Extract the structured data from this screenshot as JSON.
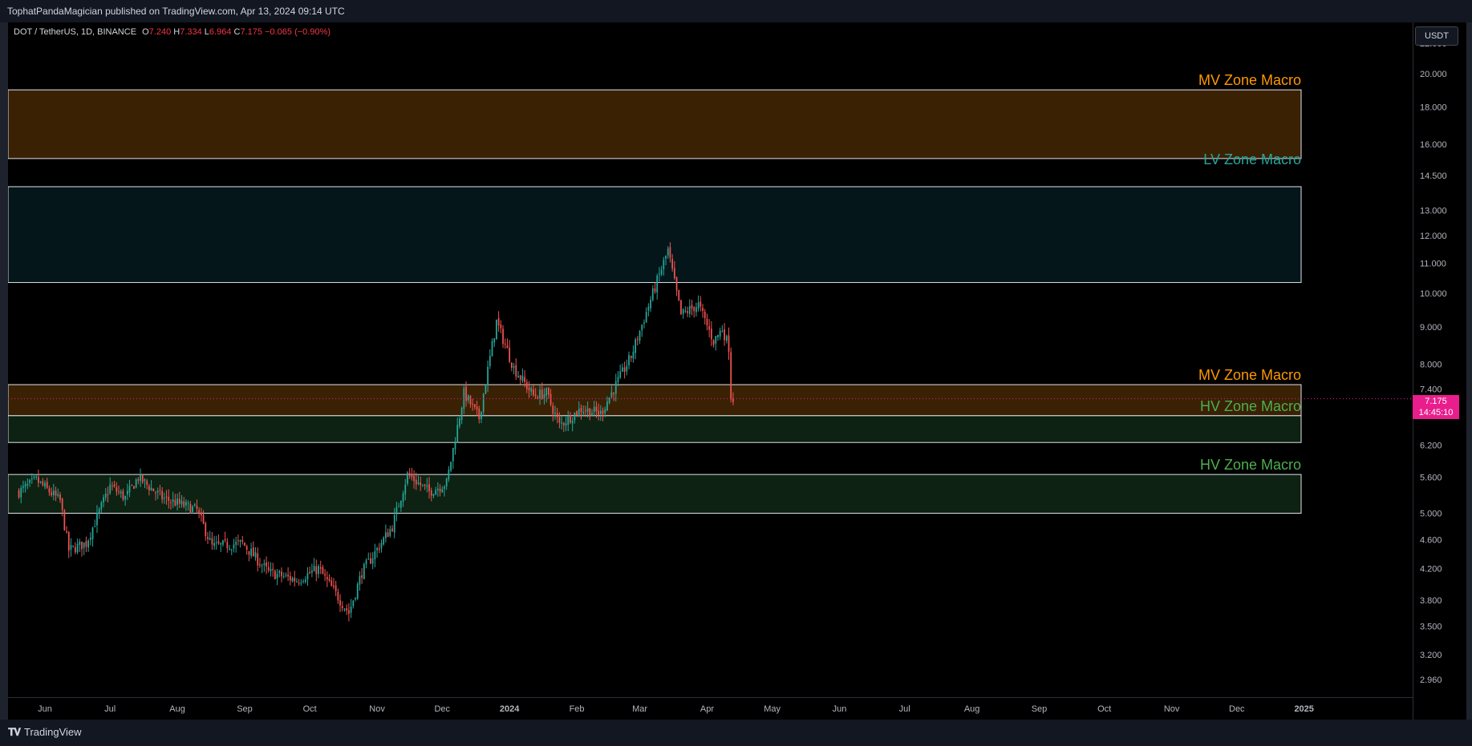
{
  "header": {
    "published_by": "TophatPandaMagician published on TradingView.com, Apr 13, 2024 09:14 UTC"
  },
  "legend": {
    "symbol": "DOT / TetherUS, 1D, BINANCE",
    "o_label": "O",
    "o_value": "7.240",
    "h_label": "H",
    "h_value": "7.334",
    "l_label": "L",
    "l_value": "6.964",
    "c_label": "C",
    "c_value": "7.175",
    "change": "−0.065 (−0.90%)"
  },
  "price_axis": {
    "currency": "USDT",
    "last_price": "7.175",
    "countdown": "14:45:10"
  },
  "footer": {
    "brand": "TradingView"
  },
  "colors": {
    "up": "#26a69a",
    "down": "#ef5350",
    "mv_zone_fill": "#3a2104",
    "lv_zone_fill": "#04161a",
    "hv_zone_fill": "#0d2212",
    "mv_label": "#ff9800",
    "lv_label": "#26a69a",
    "hv_label": "#4caf50",
    "price_line": "#e91e8c"
  },
  "chart_data": {
    "type": "candlestick",
    "title": "DOT / TetherUS, 1D, BINANCE",
    "y_scale": "log",
    "ylim": [
      2.8,
      23.5
    ],
    "y_ticks": [
      "22.000",
      "20.000",
      "18.000",
      "16.000",
      "14.500",
      "13.000",
      "12.000",
      "11.000",
      "10.000",
      "9.000",
      "8.000",
      "7.400",
      "6.800",
      "6.200",
      "5.600",
      "5.000",
      "4.600",
      "4.200",
      "3.800",
      "3.500",
      "3.200",
      "2.960"
    ],
    "x_ticks": [
      {
        "label": "Jun",
        "date": "2023-06-01"
      },
      {
        "label": "Jul",
        "date": "2023-07-01"
      },
      {
        "label": "Aug",
        "date": "2023-08-01"
      },
      {
        "label": "Sep",
        "date": "2023-09-01"
      },
      {
        "label": "Oct",
        "date": "2023-10-01"
      },
      {
        "label": "Nov",
        "date": "2023-11-01"
      },
      {
        "label": "Dec",
        "date": "2023-12-01"
      },
      {
        "label": "2024",
        "date": "2024-01-01"
      },
      {
        "label": "Feb",
        "date": "2024-02-01"
      },
      {
        "label": "Mar",
        "date": "2024-03-01"
      },
      {
        "label": "Apr",
        "date": "2024-04-01"
      },
      {
        "label": "May",
        "date": "2024-05-01"
      },
      {
        "label": "Jun",
        "date": "2024-06-01"
      },
      {
        "label": "Jul",
        "date": "2024-07-01"
      },
      {
        "label": "Aug",
        "date": "2024-08-01"
      },
      {
        "label": "Sep",
        "date": "2024-09-01"
      },
      {
        "label": "Oct",
        "date": "2024-10-01"
      },
      {
        "label": "Nov",
        "date": "2024-11-01"
      },
      {
        "label": "Dec",
        "date": "2024-12-01"
      },
      {
        "label": "2025",
        "date": "2025-01-01"
      }
    ],
    "zones": [
      {
        "label": "MV Zone Macro",
        "kind": "mv",
        "low": 15.3,
        "high": 19.0
      },
      {
        "label": "LV Zone Macro",
        "kind": "lv",
        "low": 10.35,
        "high": 14.0
      },
      {
        "label": "MV Zone Macro",
        "kind": "mv",
        "low": 6.8,
        "high": 7.5
      },
      {
        "label": "HV Zone Macro",
        "kind": "hv",
        "low": 6.25,
        "high": 6.8
      },
      {
        "label": "HV Zone Macro",
        "kind": "hv",
        "low": 5.0,
        "high": 5.65
      }
    ],
    "last_price": 7.175,
    "anchors": [
      {
        "date": "2023-05-20",
        "price": 5.35
      },
      {
        "date": "2023-05-28",
        "price": 5.55
      },
      {
        "date": "2023-06-08",
        "price": 5.2
      },
      {
        "date": "2023-06-12",
        "price": 4.45
      },
      {
        "date": "2023-06-20",
        "price": 4.55
      },
      {
        "date": "2023-07-01",
        "price": 5.45
      },
      {
        "date": "2023-07-08",
        "price": 5.25
      },
      {
        "date": "2023-07-14",
        "price": 5.6
      },
      {
        "date": "2023-07-25",
        "price": 5.25
      },
      {
        "date": "2023-08-10",
        "price": 5.05
      },
      {
        "date": "2023-08-17",
        "price": 4.5
      },
      {
        "date": "2023-08-31",
        "price": 4.55
      },
      {
        "date": "2023-09-12",
        "price": 4.15
      },
      {
        "date": "2023-09-25",
        "price": 4.05
      },
      {
        "date": "2023-10-05",
        "price": 4.2
      },
      {
        "date": "2023-10-19",
        "price": 3.65
      },
      {
        "date": "2023-10-25",
        "price": 4.15
      },
      {
        "date": "2023-11-08",
        "price": 4.8
      },
      {
        "date": "2023-11-15",
        "price": 5.65
      },
      {
        "date": "2023-11-25",
        "price": 5.35
      },
      {
        "date": "2023-12-03",
        "price": 5.5
      },
      {
        "date": "2023-12-11",
        "price": 7.3
      },
      {
        "date": "2023-12-18",
        "price": 6.75
      },
      {
        "date": "2023-12-26",
        "price": 9.15
      },
      {
        "date": "2024-01-03",
        "price": 7.9
      },
      {
        "date": "2024-01-12",
        "price": 7.25
      },
      {
        "date": "2024-01-18",
        "price": 7.3
      },
      {
        "date": "2024-01-24",
        "price": 6.6
      },
      {
        "date": "2024-02-03",
        "price": 6.95
      },
      {
        "date": "2024-02-12",
        "price": 6.85
      },
      {
        "date": "2024-02-26",
        "price": 8.2
      },
      {
        "date": "2024-03-08",
        "price": 10.2
      },
      {
        "date": "2024-03-14",
        "price": 11.45
      },
      {
        "date": "2024-03-20",
        "price": 9.35
      },
      {
        "date": "2024-03-28",
        "price": 9.65
      },
      {
        "date": "2024-04-04",
        "price": 8.6
      },
      {
        "date": "2024-04-08",
        "price": 8.95
      },
      {
        "date": "2024-04-11",
        "price": 8.45
      },
      {
        "date": "2024-04-12",
        "price": 7.24
      },
      {
        "date": "2024-04-13",
        "price": 7.175
      }
    ]
  }
}
